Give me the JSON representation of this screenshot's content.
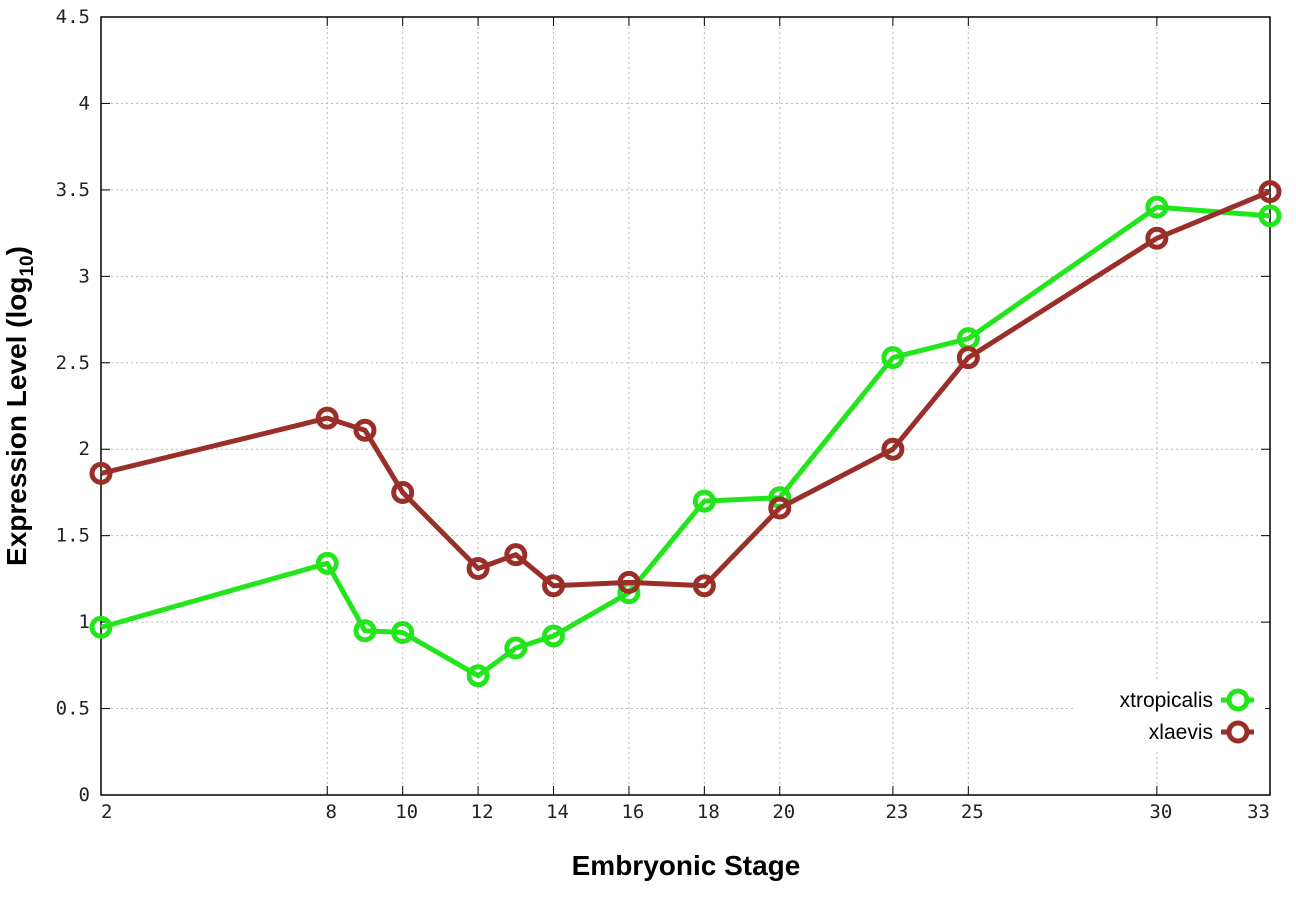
{
  "chart_data": {
    "type": "line",
    "xlabel": "Embryonic Stage",
    "ylabel_main": "Expression Level (log",
    "ylabel_sub": "10",
    "ylabel_close": ")",
    "x": [
      2,
      8,
      9,
      10,
      12,
      13,
      14,
      16,
      18,
      20,
      23,
      25,
      30,
      33
    ],
    "x_tick_labels": [
      "2",
      "8",
      "10",
      "12",
      "14",
      "16",
      "18",
      "20",
      "23",
      "25",
      "30",
      "33"
    ],
    "x_tick_values": [
      2,
      8,
      10,
      12,
      14,
      16,
      18,
      20,
      23,
      25,
      30,
      33
    ],
    "xlim": [
      2,
      33
    ],
    "y_tick_labels": [
      "0",
      "0.5",
      "1",
      "1.5",
      "2",
      "2.5",
      "3",
      "3.5",
      "4",
      "4.5"
    ],
    "y_tick_values": [
      0,
      0.5,
      1,
      1.5,
      2,
      2.5,
      3,
      3.5,
      4,
      4.5
    ],
    "ylim": [
      0,
      4.5
    ],
    "grid": true,
    "legend_position": "bottom-right",
    "series": [
      {
        "name": "xtropicalis",
        "color": "#22e51c",
        "values": [
          0.97,
          1.34,
          0.95,
          0.94,
          0.69,
          0.85,
          0.92,
          1.17,
          1.7,
          1.72,
          2.53,
          2.64,
          3.4,
          3.35
        ]
      },
      {
        "name": "xlaevis",
        "color": "#9a2e28",
        "values": [
          1.86,
          2.18,
          2.11,
          1.75,
          1.31,
          1.39,
          1.21,
          1.23,
          1.21,
          1.66,
          2.0,
          2.53,
          3.22,
          3.49
        ]
      }
    ]
  }
}
